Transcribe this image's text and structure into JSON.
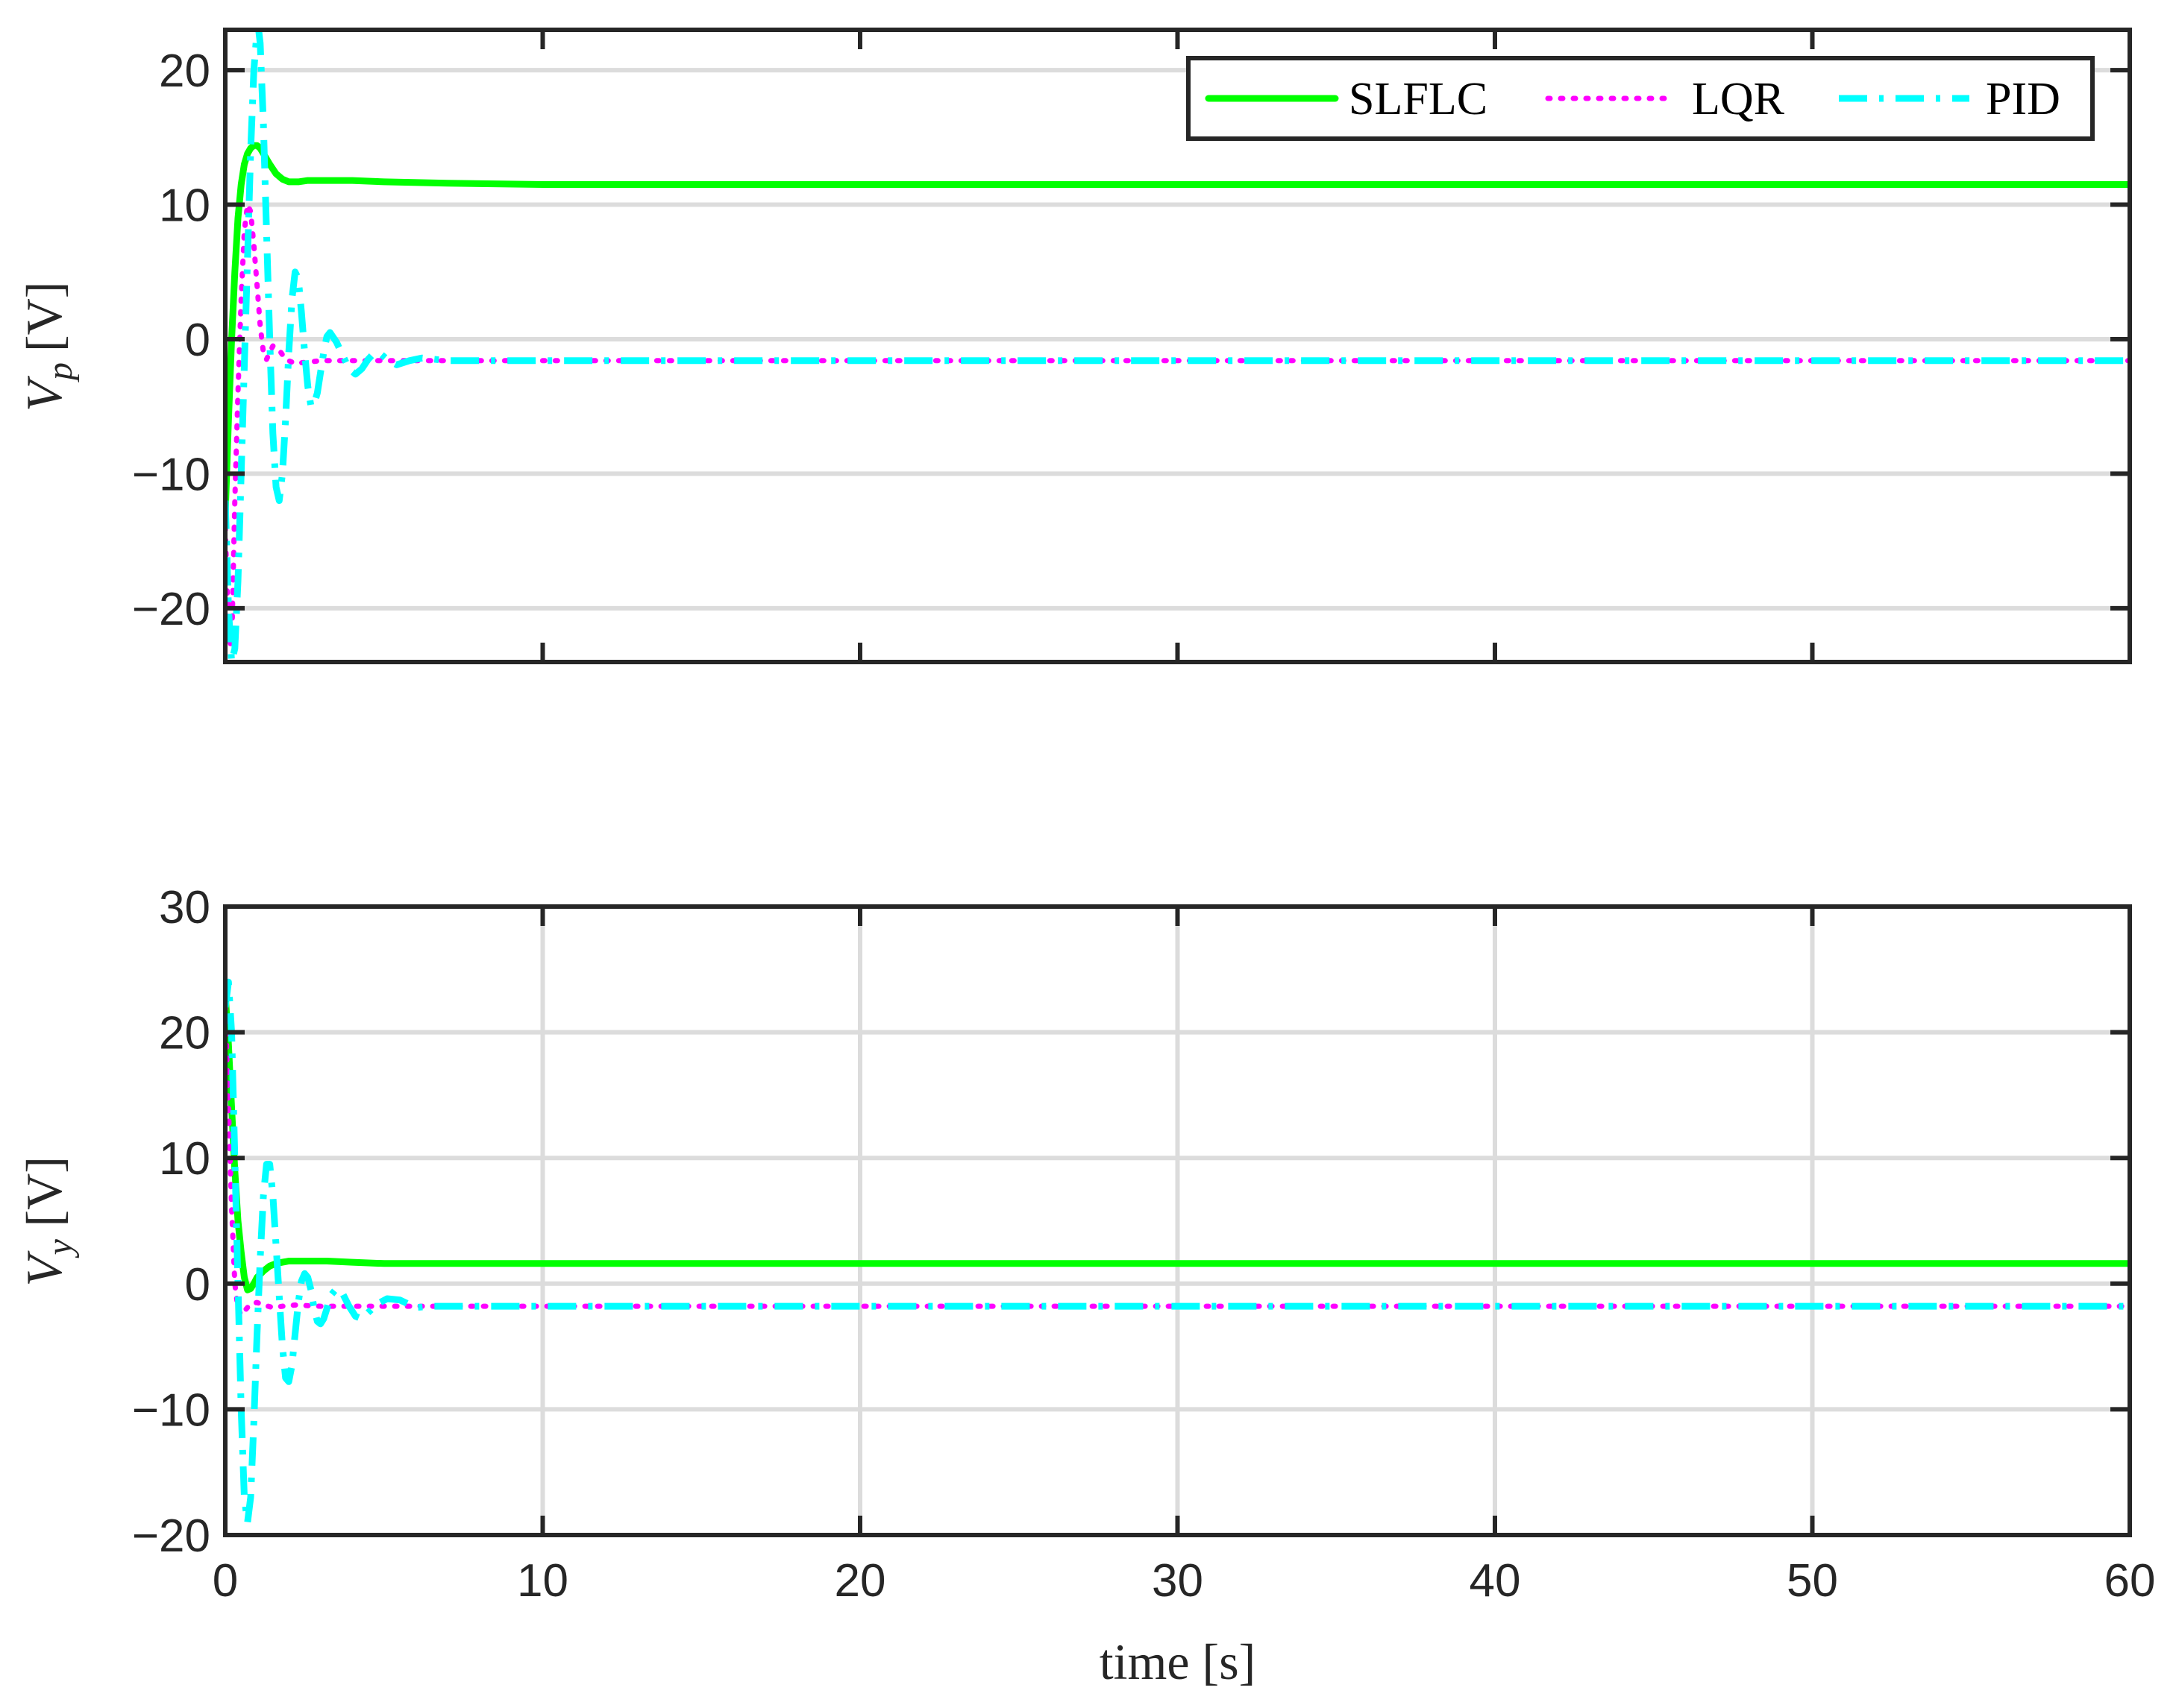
{
  "figure": {
    "xlabel": "time [s]"
  },
  "legend": {
    "placement": "top-right",
    "entries": [
      {
        "label": "SLFLC",
        "color": "#00ff00",
        "style": "solid"
      },
      {
        "label": "LQR",
        "color": "#ff00ff",
        "style": "dotted"
      },
      {
        "label": "PID",
        "color": "#00ffff",
        "style": "dash-dot"
      }
    ]
  },
  "chart_data": [
    {
      "type": "line",
      "ylabel_main": "V",
      "ylabel_sub": "p",
      "ylabel_unit": "[V]",
      "xlim": [
        0,
        60
      ],
      "ylim": [
        -24,
        23
      ],
      "xticks": [
        0,
        10,
        20,
        30,
        40,
        50,
        60
      ],
      "yticks": [
        -20,
        -10,
        0,
        10,
        20
      ],
      "ytick_labels": [
        "−20",
        "−10",
        "0",
        "10",
        "20"
      ],
      "xtick_labels_shown": false,
      "grid": "horizontal",
      "series": [
        {
          "name": "SLFLC",
          "x": [
            0,
            0.1,
            0.2,
            0.3,
            0.4,
            0.5,
            0.6,
            0.7,
            0.8,
            0.9,
            1.0,
            1.1,
            1.2,
            1.4,
            1.6,
            1.8,
            2.0,
            2.3,
            2.6,
            3.0,
            4,
            5,
            7,
            10,
            20,
            30,
            40,
            50,
            60
          ],
          "y": [
            -13,
            -6,
            0,
            5,
            9,
            11.5,
            13,
            13.8,
            14.2,
            14.4,
            14.4,
            14.2,
            13.8,
            13.0,
            12.3,
            11.9,
            11.7,
            11.7,
            11.8,
            11.8,
            11.8,
            11.7,
            11.6,
            11.5,
            11.5,
            11.5,
            11.5,
            11.5,
            11.5
          ]
        },
        {
          "name": "LQR",
          "x": [
            0,
            0.1,
            0.2,
            0.3,
            0.4,
            0.5,
            0.6,
            0.7,
            0.8,
            0.9,
            1.0,
            1.1,
            1.2,
            1.3,
            1.4,
            1.5,
            1.7,
            1.9,
            2.2,
            2.6,
            3,
            4,
            10,
            20,
            30,
            40,
            50,
            60
          ],
          "y": [
            -14,
            -22,
            -23,
            -12,
            -4,
            3,
            8,
            10,
            9.5,
            7,
            4,
            1,
            -1,
            -1.5,
            -1,
            -0.5,
            -0.8,
            -1.5,
            -1.8,
            -1.7,
            -1.6,
            -1.6,
            -1.6,
            -1.6,
            -1.6,
            -1.6,
            -1.6,
            -1.6
          ]
        },
        {
          "name": "PID",
          "x": [
            0,
            0.1,
            0.2,
            0.3,
            0.4,
            0.5,
            0.6,
            0.7,
            0.8,
            0.9,
            1.0,
            1.05,
            1.1,
            1.2,
            1.3,
            1.4,
            1.5,
            1.6,
            1.7,
            1.8,
            1.9,
            2.0,
            2.1,
            2.2,
            2.3,
            2.4,
            2.5,
            2.6,
            2.7,
            2.8,
            2.9,
            3.0,
            3.1,
            3.2,
            3.3,
            3.5,
            3.7,
            3.9,
            4.1,
            4.3,
            4.5,
            4.7,
            4.9,
            5.1,
            5.4,
            5.8,
            6.2,
            7,
            8,
            10,
            20,
            30,
            40,
            50,
            60
          ],
          "y": [
            -12,
            -20,
            -24,
            -23,
            -18,
            -10,
            -2,
            6,
            14,
            20,
            23,
            23,
            22,
            16,
            8,
            0,
            -7,
            -11,
            -12,
            -10,
            -6,
            -1,
            3,
            5,
            4.5,
            2,
            -1,
            -3.5,
            -5,
            -4.8,
            -4,
            -2.5,
            -1,
            0.2,
            0.5,
            -0.2,
            -1.2,
            -2.2,
            -2.6,
            -2.2,
            -1.5,
            -1.0,
            -1.1,
            -1.5,
            -1.9,
            -1.6,
            -1.4,
            -1.6,
            -1.6,
            -1.6,
            -1.6,
            -1.6,
            -1.6,
            -1.6,
            -1.6
          ]
        }
      ]
    },
    {
      "type": "line",
      "ylabel_main": "V",
      "ylabel_sub": "y",
      "ylabel_unit": "[V]",
      "xlim": [
        0,
        60
      ],
      "ylim": [
        -20,
        30
      ],
      "xticks": [
        0,
        10,
        20,
        30,
        40,
        50,
        60
      ],
      "xtick_labels": [
        "0",
        "10",
        "20",
        "30",
        "40",
        "50",
        "60"
      ],
      "yticks": [
        -20,
        -10,
        0,
        10,
        20,
        30
      ],
      "ytick_labels": [
        "−20",
        "−10",
        "0",
        "10",
        "20",
        "30"
      ],
      "grid": "both",
      "series": [
        {
          "name": "SLFLC",
          "x": [
            0,
            0.1,
            0.2,
            0.3,
            0.4,
            0.5,
            0.6,
            0.7,
            0.8,
            0.9,
            1.0,
            1.2,
            1.4,
            1.6,
            1.8,
            2.0,
            2.4,
            2.8,
            3.2,
            4,
            5,
            7,
            10,
            20,
            30,
            40,
            50,
            60
          ],
          "y": [
            23,
            19,
            14,
            9,
            5,
            2.5,
            0.5,
            -0.5,
            -0.4,
            0,
            0.5,
            1.0,
            1.4,
            1.6,
            1.7,
            1.8,
            1.8,
            1.8,
            1.8,
            1.7,
            1.6,
            1.6,
            1.6,
            1.6,
            1.6,
            1.6,
            1.6,
            1.6
          ]
        },
        {
          "name": "LQR",
          "x": [
            0,
            0.1,
            0.2,
            0.3,
            0.4,
            0.5,
            0.6,
            0.8,
            1.0,
            1.2,
            1.5,
            1.8,
            2.2,
            3,
            4,
            10,
            20,
            30,
            40,
            50,
            60
          ],
          "y": [
            22,
            14,
            6,
            0,
            -2,
            -2.5,
            -2.2,
            -1.6,
            -1.5,
            -1.7,
            -1.9,
            -1.8,
            -1.7,
            -1.8,
            -1.8,
            -1.8,
            -1.8,
            -1.8,
            -1.8,
            -1.8,
            -1.8
          ]
        },
        {
          "name": "PID",
          "x": [
            0,
            0.1,
            0.2,
            0.3,
            0.4,
            0.5,
            0.6,
            0.7,
            0.8,
            0.9,
            1.0,
            1.1,
            1.2,
            1.3,
            1.4,
            1.5,
            1.6,
            1.7,
            1.8,
            1.9,
            2.0,
            2.1,
            2.2,
            2.3,
            2.4,
            2.5,
            2.6,
            2.7,
            2.8,
            2.9,
            3.0,
            3.1,
            3.2,
            3.3,
            3.5,
            3.7,
            3.9,
            4.1,
            4.3,
            4.5,
            4.8,
            5.1,
            5.5,
            6.0,
            6.5,
            7.5,
            10,
            20,
            30,
            40,
            50,
            60
          ],
          "y": [
            22,
            24,
            20,
            10,
            0,
            -10,
            -17,
            -19,
            -17,
            -11,
            -4,
            2,
            7,
            9.5,
            9.5,
            7,
            3,
            -1,
            -5,
            -7.5,
            -7.8,
            -6.5,
            -4,
            -1.5,
            0.2,
            0.8,
            0.5,
            -0.5,
            -2,
            -3,
            -3.2,
            -2.8,
            -2,
            -1,
            -0.4,
            -0.8,
            -1.8,
            -2.6,
            -2.8,
            -2.3,
            -1.6,
            -1.2,
            -1.3,
            -1.9,
            -1.8,
            -1.8,
            -1.8,
            -1.8,
            -1.8,
            -1.8,
            -1.8,
            -1.8
          ]
        }
      ]
    }
  ]
}
